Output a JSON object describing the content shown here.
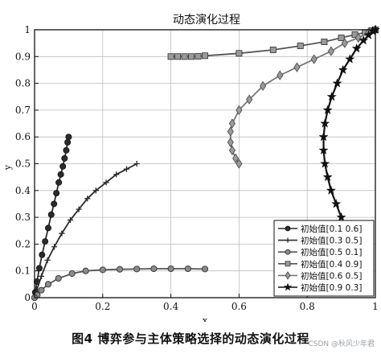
{
  "figure": {
    "caption": "图4   博弈参与主体策略选择的动态演化过程",
    "watermark": "CSDN @秋风少年君"
  },
  "chart_data": {
    "type": "line",
    "title": "动态演化过程",
    "xlabel": "x",
    "ylabel": "y",
    "xlim": [
      0,
      1
    ],
    "ylim": [
      0,
      1
    ],
    "xticks": [
      "0",
      "0.2",
      "0.4",
      "0.6",
      "0.8",
      "1"
    ],
    "yticks": [
      "0",
      "0.1",
      "0.2",
      "0.3",
      "0.4",
      "0.5",
      "0.6",
      "0.7",
      "0.8",
      "0.9",
      "1"
    ],
    "grid": true,
    "legend_position": "bottom-right",
    "series": [
      {
        "name": "初始值[0.1 0.6]",
        "marker": "circle-filled",
        "color": "#2b2b2b",
        "x": [
          0.1,
          0.097,
          0.093,
          0.088,
          0.083,
          0.077,
          0.071,
          0.064,
          0.057,
          0.049,
          0.04,
          0.031,
          0.022,
          0.014,
          0.007,
          0.002,
          0.0
        ],
        "y": [
          0.6,
          0.58,
          0.55,
          0.52,
          0.49,
          0.46,
          0.43,
          0.39,
          0.35,
          0.31,
          0.26,
          0.21,
          0.16,
          0.11,
          0.06,
          0.02,
          0.0
        ]
      },
      {
        "name": "初始值[0.3 0.5]",
        "marker": "plus",
        "color": "#2b2b2b",
        "x": [
          0.3,
          0.27,
          0.24,
          0.21,
          0.18,
          0.155,
          0.13,
          0.105,
          0.08,
          0.058,
          0.038,
          0.02,
          0.007,
          0.0
        ],
        "y": [
          0.5,
          0.48,
          0.46,
          0.43,
          0.4,
          0.37,
          0.33,
          0.29,
          0.24,
          0.19,
          0.14,
          0.08,
          0.03,
          0.0
        ]
      },
      {
        "name": "初始值[0.5 0.1]",
        "marker": "circle-open",
        "color": "#555555",
        "x": [
          0.5,
          0.45,
          0.4,
          0.35,
          0.3,
          0.25,
          0.2,
          0.15,
          0.11,
          0.07,
          0.04,
          0.02,
          0.008,
          0.0
        ],
        "y": [
          0.107,
          0.108,
          0.108,
          0.108,
          0.107,
          0.106,
          0.104,
          0.1,
          0.09,
          0.072,
          0.05,
          0.028,
          0.01,
          0.0
        ]
      },
      {
        "name": "初始值[0.4 0.9]",
        "marker": "square",
        "color": "#555555",
        "x": [
          0.4,
          0.42,
          0.44,
          0.46,
          0.48,
          0.5,
          0.6,
          0.7,
          0.78,
          0.85,
          0.9,
          0.94,
          0.97,
          0.99,
          1.0
        ],
        "y": [
          0.9,
          0.9,
          0.9,
          0.9,
          0.901,
          0.903,
          0.912,
          0.925,
          0.94,
          0.955,
          0.97,
          0.982,
          0.99,
          0.997,
          1.0
        ]
      },
      {
        "name": "初始值[0.6 0.5]",
        "marker": "diamond",
        "color": "#777777",
        "x": [
          0.6,
          0.59,
          0.58,
          0.575,
          0.575,
          0.58,
          0.6,
          0.63,
          0.67,
          0.72,
          0.77,
          0.82,
          0.87,
          0.91,
          0.95,
          0.98,
          1.0
        ],
        "y": [
          0.5,
          0.52,
          0.55,
          0.58,
          0.62,
          0.65,
          0.7,
          0.74,
          0.79,
          0.83,
          0.86,
          0.89,
          0.92,
          0.95,
          0.97,
          0.99,
          1.0
        ]
      },
      {
        "name": "初始值[0.9 0.3]",
        "marker": "star",
        "color": "#111111",
        "x": [
          0.9,
          0.885,
          0.87,
          0.86,
          0.852,
          0.848,
          0.848,
          0.852,
          0.86,
          0.872,
          0.888,
          0.905,
          0.925,
          0.945,
          0.965,
          0.98,
          0.992,
          1.0
        ],
        "y": [
          0.3,
          0.35,
          0.4,
          0.45,
          0.5,
          0.55,
          0.6,
          0.65,
          0.7,
          0.75,
          0.8,
          0.85,
          0.89,
          0.93,
          0.96,
          0.98,
          0.995,
          1.0
        ]
      }
    ]
  }
}
